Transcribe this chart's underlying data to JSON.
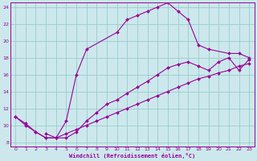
{
  "background_color": "#cce8ec",
  "grid_color": "#99cccc",
  "line_color": "#990099",
  "marker": "D",
  "xlabel": "Windchill (Refroidissement éolien,°C)",
  "xlim": [
    -0.5,
    23.5
  ],
  "ylim": [
    7.5,
    24.5
  ],
  "yticks": [
    8,
    10,
    12,
    14,
    16,
    18,
    20,
    22,
    24
  ],
  "xticks": [
    0,
    1,
    2,
    3,
    4,
    5,
    6,
    7,
    8,
    9,
    10,
    11,
    12,
    13,
    14,
    15,
    16,
    17,
    18,
    19,
    20,
    21,
    22,
    23
  ],
  "series1_x": [
    0,
    1,
    2,
    3,
    4,
    5,
    6,
    7,
    10,
    11,
    12,
    13,
    14,
    15,
    16,
    17,
    18,
    19,
    21,
    22,
    23
  ],
  "series1_y": [
    11,
    10,
    9.2,
    8.5,
    8.5,
    10.5,
    16.0,
    19.0,
    21.0,
    22.5,
    23.0,
    23.5,
    24.0,
    24.5,
    23.5,
    22.5,
    19.5,
    19.0,
    18.5,
    18.5,
    18.0
  ],
  "series2_x": [
    0,
    1,
    2,
    3,
    4,
    5,
    6,
    7,
    8,
    9,
    10,
    11,
    12,
    13,
    14,
    15,
    16,
    17,
    18,
    19,
    20,
    21,
    22,
    23
  ],
  "series2_y": [
    11.0,
    10.2,
    9.2,
    8.5,
    8.5,
    9.0,
    9.5,
    10.0,
    10.5,
    11.0,
    11.5,
    12.0,
    12.5,
    13.0,
    13.5,
    14.0,
    14.5,
    15.0,
    15.5,
    15.8,
    16.2,
    16.5,
    17.0,
    17.3
  ],
  "series3_x": [
    3,
    4,
    5,
    6,
    7,
    8,
    9,
    10,
    11,
    12,
    13,
    14,
    15,
    16,
    17,
    18,
    19,
    20,
    21,
    22,
    23
  ],
  "series3_y": [
    9.0,
    8.5,
    8.5,
    9.2,
    10.5,
    11.5,
    12.5,
    13.0,
    13.8,
    14.5,
    15.2,
    16.0,
    16.8,
    17.2,
    17.5,
    17.0,
    16.5,
    17.5,
    18.0,
    16.5,
    17.8
  ]
}
